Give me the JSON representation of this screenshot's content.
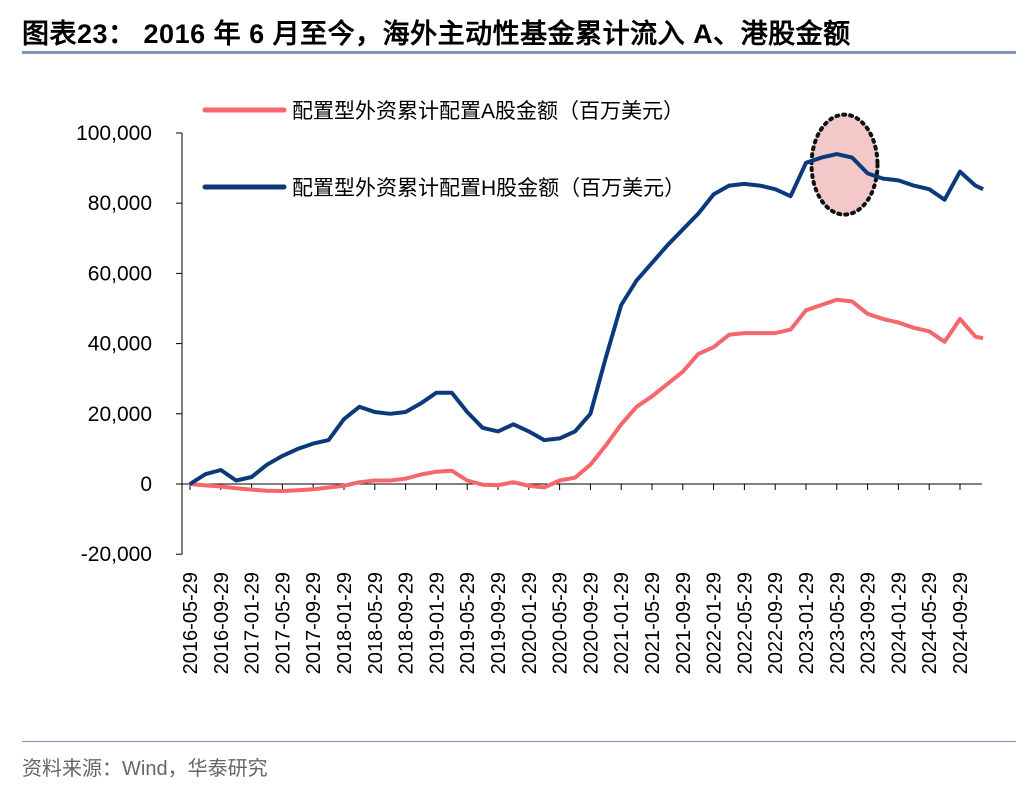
{
  "title": "图表23：  2016 年 6 月至今，海外主动性基金累计流入 A、港股金额",
  "source": "资料来源：Wind，华泰研究",
  "chart_data": {
    "type": "line",
    "title": "",
    "xlabel": "",
    "ylabel": "",
    "ylim": [
      -20000,
      100000
    ],
    "yticks": [
      -20000,
      0,
      20000,
      40000,
      60000,
      80000,
      100000
    ],
    "ytick_labels": [
      "-20,000",
      "0",
      "20,000",
      "40,000",
      "60,000",
      "80,000",
      "100,000"
    ],
    "xtick_labels": [
      "2016-05-29",
      "2016-09-29",
      "2017-01-29",
      "2017-05-29",
      "2017-09-29",
      "2018-01-29",
      "2018-05-29",
      "2018-09-29",
      "2019-01-29",
      "2019-05-29",
      "2019-09-29",
      "2020-01-29",
      "2020-05-29",
      "2020-09-29",
      "2021-01-29",
      "2021-05-29",
      "2021-09-29",
      "2022-01-29",
      "2022-05-29",
      "2022-09-29",
      "2023-01-29",
      "2023-05-29",
      "2023-09-29",
      "2024-01-29",
      "2024-05-29",
      "2024-09-29"
    ],
    "grid": false,
    "legend_position": "top-left",
    "x": [
      "2016-05",
      "2016-07",
      "2016-09",
      "2016-11",
      "2017-01",
      "2017-03",
      "2017-05",
      "2017-07",
      "2017-09",
      "2017-11",
      "2018-01",
      "2018-03",
      "2018-05",
      "2018-07",
      "2018-09",
      "2018-11",
      "2019-01",
      "2019-03",
      "2019-05",
      "2019-07",
      "2019-09",
      "2019-11",
      "2020-01",
      "2020-03",
      "2020-05",
      "2020-07",
      "2020-09",
      "2020-11",
      "2021-01",
      "2021-03",
      "2021-05",
      "2021-07",
      "2021-09",
      "2021-11",
      "2022-01",
      "2022-03",
      "2022-05",
      "2022-07",
      "2022-09",
      "2022-11",
      "2023-01",
      "2023-03",
      "2023-05",
      "2023-07",
      "2023-09",
      "2023-11",
      "2024-01",
      "2024-03",
      "2024-05",
      "2024-07",
      "2024-09",
      "2024-11",
      "2024-12"
    ],
    "series": [
      {
        "name": "配置型外资累计配置A股金额（百万美元）",
        "color": "#f4676a",
        "values": [
          0,
          -400,
          -700,
          -1200,
          -1600,
          -1900,
          -2000,
          -1800,
          -1500,
          -1000,
          -500,
          500,
          1000,
          1000,
          1500,
          2700,
          3500,
          3800,
          1000,
          -200,
          -300,
          500,
          -500,
          -1000,
          1000,
          1800,
          5500,
          11000,
          17000,
          22000,
          25000,
          28500,
          32000,
          37000,
          39000,
          42500,
          43000,
          43000,
          43000,
          44000,
          49500,
          51000,
          52500,
          52000,
          48500,
          47000,
          46000,
          44500,
          43500,
          40500,
          47000,
          42000,
          41500
        ]
      },
      {
        "name": "配置型外资累计配置H股金额（百万美元）",
        "color": "#0a3a7a",
        "values": [
          0,
          2800,
          4000,
          1000,
          2000,
          5500,
          8000,
          10000,
          11500,
          12500,
          18500,
          22000,
          20500,
          20000,
          20500,
          23000,
          26000,
          26000,
          20500,
          16000,
          15000,
          17000,
          15000,
          12500,
          13000,
          15000,
          20000,
          36000,
          51000,
          58000,
          63000,
          68000,
          72500,
          77000,
          82500,
          85000,
          85500,
          85000,
          84000,
          82000,
          91500,
          93000,
          94000,
          93000,
          88500,
          87000,
          86500,
          85000,
          84000,
          81000,
          89000,
          85000,
          84000
        ]
      }
    ],
    "highlight": {
      "shape": "dotted-ellipse",
      "fill": "#f2c8c8",
      "center_x": "2023-06",
      "center_y": 91000
    }
  }
}
